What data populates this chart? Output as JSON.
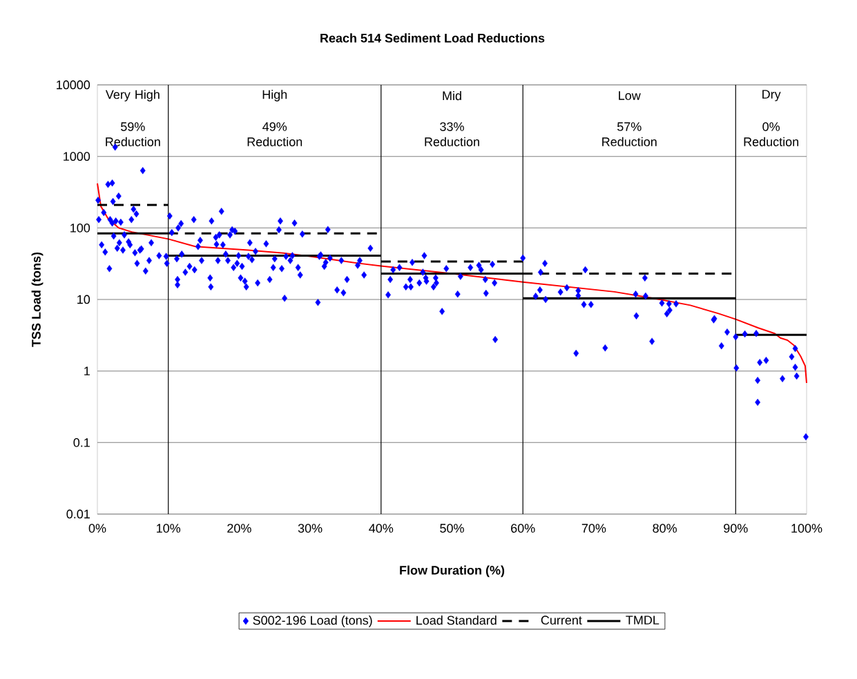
{
  "chart_data": {
    "type": "scatter",
    "title": "Reach 514 Sediment Load Reductions",
    "xlabel": "Flow Duration (%)",
    "ylabel": "TSS Load (tons)",
    "xlim": [
      0,
      100
    ],
    "xticks": [
      {
        "value": 0,
        "label": "0%"
      },
      {
        "value": 10,
        "label": "10%"
      },
      {
        "value": 20,
        "label": "20%"
      },
      {
        "value": 30,
        "label": "30%"
      },
      {
        "value": 40,
        "label": "40%"
      },
      {
        "value": 50,
        "label": "50%"
      },
      {
        "value": 60,
        "label": "60%"
      },
      {
        "value": 70,
        "label": "70%"
      },
      {
        "value": 80,
        "label": "80%"
      },
      {
        "value": 90,
        "label": "90%"
      },
      {
        "value": 100,
        "label": "100%"
      }
    ],
    "ylim": [
      0.01,
      10000
    ],
    "yticks": [
      0.01,
      0.1,
      1,
      10,
      100,
      1000,
      10000
    ],
    "log": "y",
    "grid": "y",
    "legend": "bottom",
    "ref_lines": [
      {
        "axis": "x",
        "value": 10,
        "color": "#000000"
      },
      {
        "axis": "x",
        "value": 40,
        "color": "#000000"
      },
      {
        "axis": "x",
        "value": 60,
        "color": "#000000"
      },
      {
        "axis": "x",
        "value": 90,
        "color": "#000000"
      }
    ],
    "annotations": [
      "Very High",
      "59% Reduction",
      "High",
      "49% Reduction",
      "Mid",
      "33% Reduction",
      "Low",
      "57% Reduction",
      "Dry",
      "0% Reduction"
    ],
    "series": [
      {
        "name": "S002-196 Load (tons)",
        "marker": "diamond",
        "color": "#0000ff",
        "x": [
          0.1,
          0.2,
          0.6,
          0.9,
          1.1,
          1.5,
          1.7,
          1.8,
          2.1,
          2.1,
          2.2,
          2.3,
          2.5,
          2.6,
          2.8,
          3.0,
          3.1,
          3.3,
          3.6,
          3.8,
          4.4,
          4.6,
          4.8,
          5.1,
          5.3,
          5.5,
          5.6,
          6.0,
          6.2,
          6.4,
          6.8,
          7.3,
          7.6,
          8.7,
          9.7,
          9.8,
          10.2,
          10.5,
          11.2,
          11.3,
          11.3,
          11.4,
          11.8,
          11.9,
          12.4,
          13.0,
          13.6,
          13.7,
          14.2,
          14.5,
          14.7,
          15.9,
          16.0,
          16.1,
          16.7,
          16.8,
          17.0,
          17.2,
          17.5,
          17.7,
          18.1,
          18.4,
          18.7,
          19.0,
          19.2,
          19.4,
          19.7,
          19.9,
          20.2,
          20.4,
          20.8,
          21.0,
          21.3,
          21.5,
          21.8,
          22.3,
          22.6,
          23.8,
          24.3,
          24.8,
          25.0,
          25.6,
          25.8,
          26.0,
          26.4,
          26.6,
          27.2,
          27.5,
          27.8,
          28.3,
          28.6,
          28.9,
          31.1,
          31.3,
          31.5,
          32.0,
          32.2,
          32.5,
          32.8,
          33.8,
          34.4,
          34.7,
          35.2,
          36.7,
          37.0,
          37.6,
          38.5,
          41.0,
          41.3,
          41.7,
          42.6,
          43.5,
          44.1,
          44.2,
          44.4,
          45.4,
          45.9,
          46.1,
          46.3,
          46.4,
          47.4,
          47.7,
          47.8,
          48.6,
          49.2,
          50.8,
          51.2,
          52.6,
          53.8,
          54.1,
          54.7,
          54.8,
          55.7,
          56.0,
          56.1,
          60.0,
          61.8,
          62.4,
          62.5,
          63.1,
          63.2,
          65.3,
          66.2,
          67.5,
          67.8,
          67.8,
          68.6,
          68.8,
          69.6,
          71.6,
          75.9,
          76.0,
          77.2,
          77.3,
          78.2,
          79.6,
          80.3,
          80.6,
          80.7,
          81.6,
          86.9,
          87.0,
          88.0,
          88.8,
          90.0,
          90.1,
          91.3,
          92.9,
          93.1,
          93.1,
          93.4,
          94.3,
          96.6,
          97.9,
          98.4,
          98.4,
          98.6,
          99.9
        ],
        "values": [
          244,
          131,
          58,
          164,
          46,
          407,
          27,
          131,
          425,
          117,
          234,
          77,
          1350,
          125,
          52,
          279,
          62,
          120,
          49,
          80,
          64,
          58,
          131,
          183,
          45,
          157,
          32,
          49,
          51,
          634,
          25,
          35,
          62,
          41,
          40,
          32,
          147,
          86,
          37,
          19,
          16,
          100,
          115,
          43,
          24,
          29,
          131,
          26,
          55,
          67,
          35,
          20,
          15,
          125,
          74,
          59,
          35,
          80,
          171,
          58,
          43,
          35,
          80,
          94,
          28,
          90,
          32,
          41,
          20,
          29,
          18,
          15,
          40,
          62,
          36,
          47,
          17,
          60,
          19,
          28,
          37,
          94,
          125,
          27,
          10.4,
          40,
          35,
          41,
          117,
          28,
          22,
          82,
          9.1,
          40,
          42,
          29,
          33,
          95,
          38,
          13.6,
          35,
          12.4,
          19,
          30,
          35,
          22,
          52,
          11.6,
          19,
          26,
          28,
          15,
          19,
          15,
          33,
          17,
          24,
          41,
          20,
          18,
          15,
          20,
          17,
          6.8,
          27,
          11.9,
          21,
          28,
          30,
          26,
          19,
          12.2,
          31,
          17,
          2.75,
          38,
          11.1,
          13.6,
          24,
          32,
          10,
          12.7,
          14.6,
          1.77,
          13.3,
          11.3,
          8.5,
          26,
          8.5,
          2.1,
          11.9,
          5.9,
          20,
          11.2,
          2.6,
          8.9,
          6.3,
          8.7,
          7.1,
          8.7,
          5.2,
          5.4,
          2.25,
          3.5,
          3.0,
          1.1,
          3.3,
          3.35,
          0.74,
          0.365,
          1.32,
          1.41,
          0.78,
          1.58,
          2.06,
          1.13,
          0.85,
          0.12
        ]
      },
      {
        "name": "Load Standard",
        "type": "line",
        "color": "#ff0000",
        "x": [
          0,
          0.5,
          1.5,
          3,
          5,
          7,
          10,
          13.8,
          21.3,
          26.2,
          30,
          36.9,
          40,
          50,
          60,
          72.9,
          78.8,
          83.6,
          87.5,
          90,
          93.2,
          95.5,
          96.3,
          97.3,
          98.2,
          99.2,
          99.8,
          100
        ],
        "values": [
          420,
          200,
          135,
          100,
          87,
          80,
          70,
          55,
          49,
          44.6,
          40,
          32,
          29.4,
          23,
          17.5,
          12.8,
          10.2,
          8.3,
          6.4,
          5.3,
          4.0,
          3.35,
          2.9,
          2.7,
          2.3,
          1.58,
          1.18,
          0.68
        ]
      },
      {
        "name": "Current",
        "type": "line",
        "line_style": "dashed",
        "color": "#000000",
        "x": [
          0,
          10
        ],
        "values": [
          210,
          210
        ]
      },
      {
        "type": "line",
        "line_style": "dashed",
        "color": "#000000",
        "x": [
          10,
          40
        ],
        "values": [
          84,
          84
        ]
      },
      {
        "type": "line",
        "line_style": "dashed",
        "color": "#000000",
        "x": [
          40,
          60
        ],
        "values": [
          34,
          34
        ]
      },
      {
        "type": "line",
        "line_style": "dashed",
        "color": "#000000",
        "x": [
          60,
          90
        ],
        "values": [
          23,
          23
        ]
      },
      {
        "name": "TMDL",
        "type": "line",
        "line_style": "solid",
        "color": "#000000",
        "x": [
          0,
          10
        ],
        "values": [
          84,
          84
        ]
      },
      {
        "type": "line",
        "line_style": "solid",
        "color": "#000000",
        "x": [
          10,
          40
        ],
        "values": [
          41,
          41
        ]
      },
      {
        "type": "line",
        "line_style": "solid",
        "color": "#000000",
        "x": [
          40,
          60
        ],
        "values": [
          23,
          23
        ]
      },
      {
        "type": "line",
        "line_style": "solid",
        "color": "#000000",
        "x": [
          60,
          90
        ],
        "values": [
          10.4,
          10.4
        ]
      },
      {
        "type": "line",
        "line_style": "solid",
        "color": "#000000",
        "x": [
          90,
          100
        ],
        "values": [
          3.2,
          3.2
        ]
      }
    ]
  }
}
